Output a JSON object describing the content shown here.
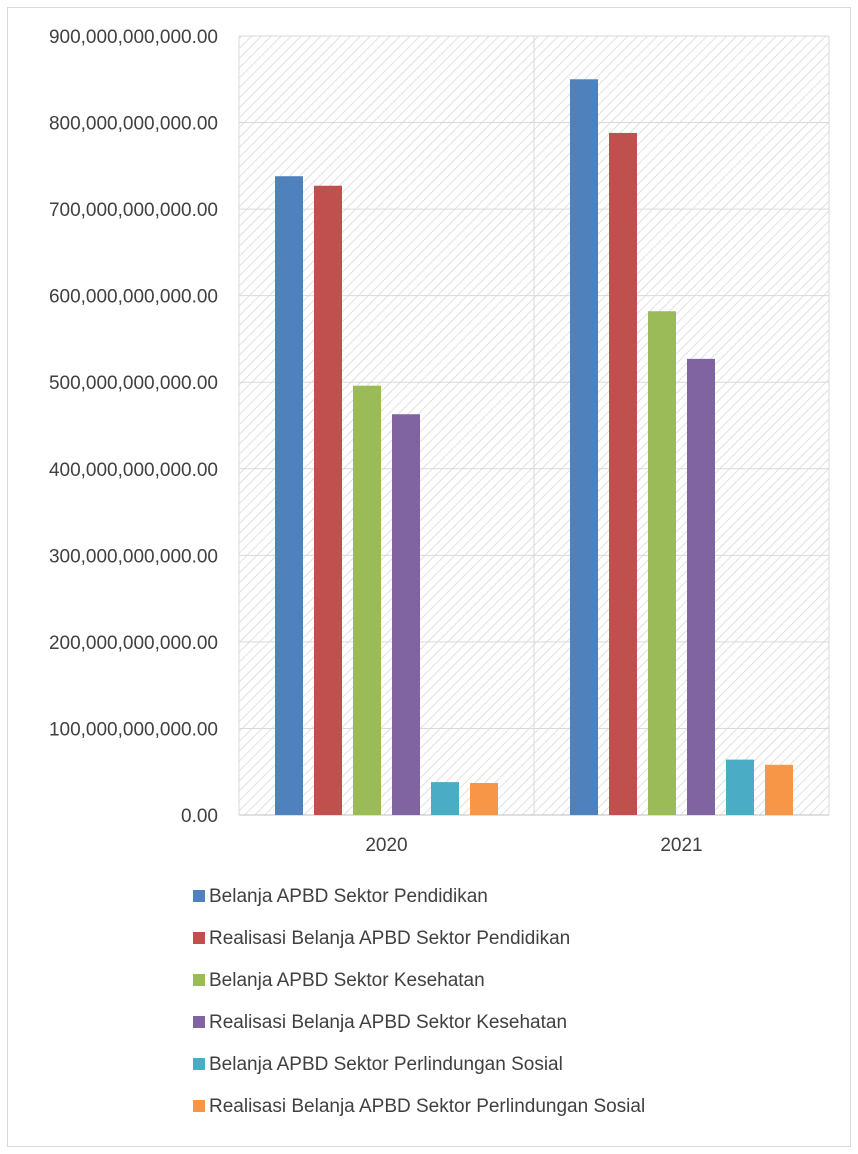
{
  "chart_data": {
    "type": "bar",
    "categories": [
      "2020",
      "2021"
    ],
    "ylim": [
      0,
      900000000000
    ],
    "yticks": [
      {
        "value": 0,
        "label": "0.00"
      },
      {
        "value": 100000000000,
        "label": "100,000,000,000.00"
      },
      {
        "value": 200000000000,
        "label": "200,000,000,000.00"
      },
      {
        "value": 300000000000,
        "label": "300,000,000,000.00"
      },
      {
        "value": 400000000000,
        "label": "400,000,000,000.00"
      },
      {
        "value": 500000000000,
        "label": "500,000,000,000.00"
      },
      {
        "value": 600000000000,
        "label": "600,000,000,000.00"
      },
      {
        "value": 700000000000,
        "label": "700,000,000,000.00"
      },
      {
        "value": 800000000000,
        "label": "800,000,000,000.00"
      },
      {
        "value": 900000000000,
        "label": "900,000,000,000.00"
      }
    ],
    "grid": true,
    "legend_position": "bottom",
    "series": [
      {
        "name": "Belanja APBD Sektor Pendidikan",
        "color": "#4F81BD",
        "values": [
          738000000000,
          850000000000
        ]
      },
      {
        "name": "Realisasi Belanja APBD Sektor Pendidikan",
        "color": "#C0504D",
        "values": [
          727000000000,
          788000000000
        ]
      },
      {
        "name": "Belanja APBD Sektor Kesehatan",
        "color": "#9BBB59",
        "values": [
          496000000000,
          582000000000
        ]
      },
      {
        "name": "Realisasi Belanja APBD Sektor Kesehatan",
        "color": "#8064A2",
        "values": [
          463000000000,
          527000000000
        ]
      },
      {
        "name": "Belanja APBD Sektor Perlindungan Sosial",
        "color": "#4BACC6",
        "values": [
          38000000000,
          64000000000
        ]
      },
      {
        "name": "Realisasi Belanja APBD Sektor Perlindungan Sosial",
        "color": "#F79646",
        "values": [
          37000000000,
          58000000000
        ]
      }
    ]
  }
}
